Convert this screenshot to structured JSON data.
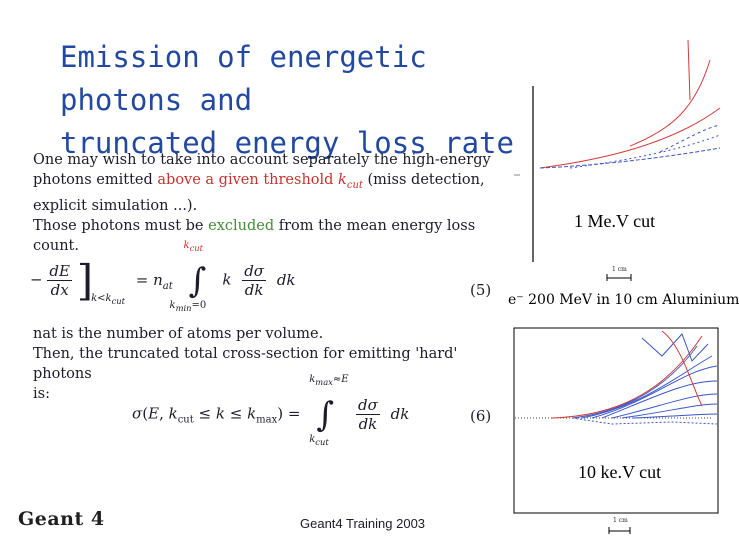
{
  "slide": {
    "title_line1": "Emission of energetic photons and",
    "title_line2": "truncated energy loss rate"
  },
  "body": {
    "p1_a": "One may wish to take into account separately the high-energy",
    "p1_b": "photons emitted ",
    "p1_red": "above a given threshold ",
    "p1_kcut": "k",
    "p1_kcut_sub": "cut",
    "p1_c": " (miss detection,",
    "p1_d": "explicit simulation ...).",
    "p2_a": "Those photons must be ",
    "p2_green": "excluded",
    "p2_b": " from the mean energy loss count.",
    "p3": "nat is the number of atoms per volume.",
    "p4_a": "Then, the truncated total cross-section for emitting 'hard' photons",
    "p4_b": "is:"
  },
  "equations": {
    "eq5_number": "(5)",
    "eq6_number": "(6)"
  },
  "plots": {
    "top_label": "1 Me.V cut",
    "bottom_label": "10 ke.V cut",
    "caption": "e⁻ 200 MeV in 10 cm Aluminium",
    "scale_label_top": "1 cm",
    "scale_label_bottom": "1 cm"
  },
  "footer": {
    "logo": "Geant 4",
    "center": "Geant4 Training 2003"
  }
}
